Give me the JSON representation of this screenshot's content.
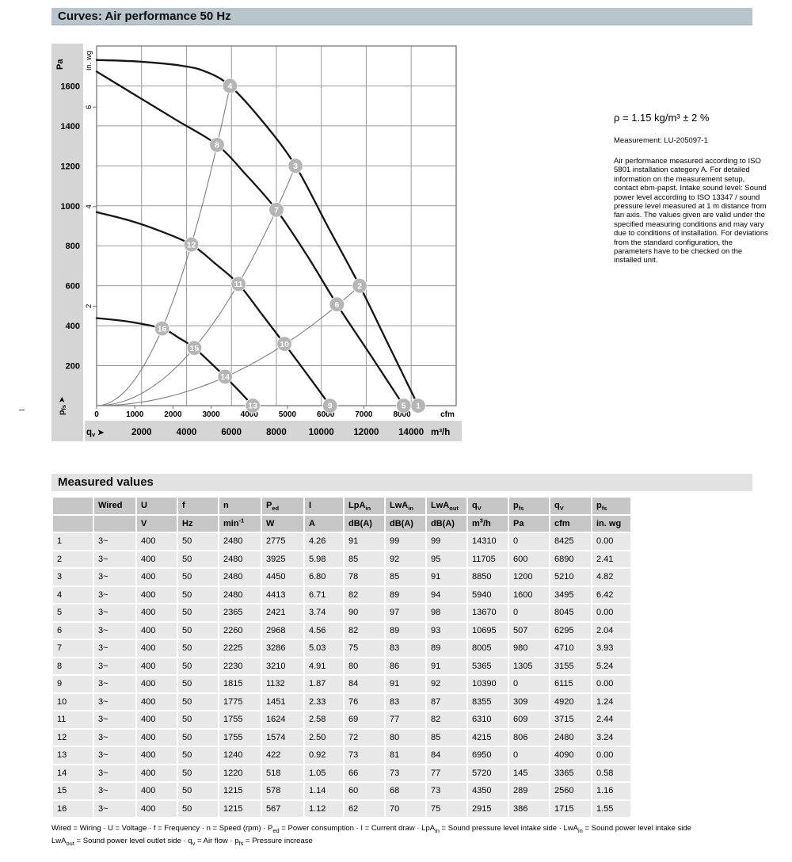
{
  "header": {
    "title": "Curves: Air performance 50 Hz",
    "bg": "#b9c5cd"
  },
  "section2": {
    "title": "Measured values",
    "bg": "#e2e2e2"
  },
  "margin_mark": "–",
  "notes": {
    "density": "ρ = 1.15 kg/m³ ± 2 %",
    "measurement": "Measurement: LU-205097-1",
    "body": "Air performance measured according to ISO 5801 installation category A. For detailed information on the measurement setup, contact ebm-papst. Intake sound level: Sound power level according to ISO 13347 / sound pressure level measured at 1 m distance from fan axis. The values given are valid under the specified measuring conditions and may vary due to conditions of installation. For deviations from the standard configuration, the parameters have to be checked on the installed unit."
  },
  "chart_data": {
    "type": "line",
    "title": "Air performance 50 Hz",
    "x_axis": {
      "label": "cfm",
      "min": 0,
      "max": 9420,
      "ticks": [
        0,
        1000,
        2000,
        3000,
        4000,
        5000,
        6000,
        7000,
        8000
      ]
    },
    "x_axis_secondary": {
      "label": "m³/h",
      "prefix_base": "q",
      "prefix_sub": "v",
      "prefix_arrow": "➤",
      "ticks": [
        2000,
        4000,
        6000,
        8000,
        10000,
        12000,
        14000
      ],
      "cfm_per_m3h": 0.5886,
      "grid_step": 2000
    },
    "y_axis": {
      "label": "Pa",
      "min": 0,
      "max": 1800,
      "ticks": [
        200,
        400,
        600,
        800,
        1000,
        1200,
        1400,
        1600
      ]
    },
    "y_axis_left_bottom": {
      "base": "p",
      "sub": "fs",
      "arrow": "➤"
    },
    "y_axis_secondary": {
      "label": "in. wg",
      "ticks": [
        2,
        4,
        6
      ],
      "pa_per_unit": 249
    },
    "grid": true,
    "fan_curves": [
      {
        "name": "fan-curve-markers-4-3-2-1",
        "points": [
          [
            0,
            1730
          ],
          [
            1100,
            1722
          ],
          [
            2200,
            1702
          ],
          [
            2850,
            1672
          ],
          [
            3495,
            1600
          ],
          [
            4380,
            1415
          ],
          [
            5210,
            1200
          ],
          [
            6060,
            895
          ],
          [
            6890,
            600
          ],
          [
            7670,
            295
          ],
          [
            8425,
            0
          ]
        ]
      },
      {
        "name": "fan-curve-markers-8-7-6-5",
        "points": [
          [
            0,
            1672
          ],
          [
            1050,
            1550
          ],
          [
            2100,
            1428
          ],
          [
            3155,
            1305
          ],
          [
            3940,
            1150
          ],
          [
            4710,
            980
          ],
          [
            5510,
            752
          ],
          [
            6295,
            507
          ],
          [
            7180,
            252
          ],
          [
            8045,
            0
          ]
        ]
      },
      {
        "name": "fan-curve-markers-12-11-10-9",
        "points": [
          [
            0,
            968
          ],
          [
            830,
            928
          ],
          [
            1650,
            875
          ],
          [
            2480,
            806
          ],
          [
            3100,
            712
          ],
          [
            3715,
            609
          ],
          [
            4320,
            460
          ],
          [
            4920,
            309
          ],
          [
            5520,
            156
          ],
          [
            6115,
            0
          ]
        ]
      },
      {
        "name": "fan-curve-markers-16-15-14-13",
        "points": [
          [
            0,
            438
          ],
          [
            860,
            420
          ],
          [
            1715,
            386
          ],
          [
            2140,
            341
          ],
          [
            2560,
            289
          ],
          [
            2965,
            218
          ],
          [
            3365,
            145
          ],
          [
            3730,
            74
          ],
          [
            4090,
            0
          ]
        ]
      }
    ],
    "system_curves": [
      {
        "through_markers": [
          16,
          12,
          8,
          4
        ],
        "end": [
          3495,
          1600
        ]
      },
      {
        "through_markers": [
          15,
          11,
          7,
          3
        ],
        "end": [
          5210,
          1200
        ]
      },
      {
        "through_markers": [
          14,
          10,
          6,
          2
        ],
        "end": [
          6890,
          600
        ]
      }
    ],
    "markers": [
      {
        "id": 1,
        "cfm": 8425,
        "pa": 0
      },
      {
        "id": 2,
        "cfm": 6890,
        "pa": 600
      },
      {
        "id": 3,
        "cfm": 5210,
        "pa": 1200
      },
      {
        "id": 4,
        "cfm": 3495,
        "pa": 1600
      },
      {
        "id": 5,
        "cfm": 8045,
        "pa": 0
      },
      {
        "id": 6,
        "cfm": 6295,
        "pa": 507
      },
      {
        "id": 7,
        "cfm": 4710,
        "pa": 980
      },
      {
        "id": 8,
        "cfm": 3155,
        "pa": 1305
      },
      {
        "id": 9,
        "cfm": 6115,
        "pa": 0
      },
      {
        "id": 10,
        "cfm": 4920,
        "pa": 309
      },
      {
        "id": 11,
        "cfm": 3715,
        "pa": 609
      },
      {
        "id": 12,
        "cfm": 2480,
        "pa": 806
      },
      {
        "id": 13,
        "cfm": 4090,
        "pa": 0
      },
      {
        "id": 14,
        "cfm": 3365,
        "pa": 145
      },
      {
        "id": 15,
        "cfm": 2560,
        "pa": 289
      },
      {
        "id": 16,
        "cfm": 1715,
        "pa": 386
      }
    ],
    "colors": {
      "fan": "#151515",
      "system": "#7e7e7e",
      "grid": "#9b9b9b",
      "border": "#6e6e6e",
      "marker": "#b5b5b5",
      "marker_text": "#ffffff",
      "band": "#d5d5d5"
    }
  },
  "table": {
    "header_row1": [
      [],
      [
        [
          "t",
          "Wired"
        ]
      ],
      [
        [
          "t",
          "U"
        ]
      ],
      [
        [
          "t",
          "f"
        ]
      ],
      [
        [
          "t",
          "n"
        ]
      ],
      [
        [
          "t",
          "P"
        ],
        [
          "sub",
          "ed"
        ]
      ],
      [
        [
          "t",
          "I"
        ]
      ],
      [
        [
          "t",
          "LpA"
        ],
        [
          "sub",
          "in"
        ]
      ],
      [
        [
          "t",
          "LwA"
        ],
        [
          "sub",
          "in"
        ]
      ],
      [
        [
          "t",
          "LwA"
        ],
        [
          "sub",
          "out"
        ]
      ],
      [
        [
          "t",
          "q"
        ],
        [
          "sub",
          "V"
        ]
      ],
      [
        [
          "t",
          "p"
        ],
        [
          "sub",
          "fs"
        ]
      ],
      [
        [
          "t",
          "q"
        ],
        [
          "sub",
          "V"
        ]
      ],
      [
        [
          "t",
          "p"
        ],
        [
          "sub",
          "fs"
        ]
      ]
    ],
    "header_row2": [
      [],
      [],
      [
        [
          "t",
          "V"
        ]
      ],
      [
        [
          "t",
          "Hz"
        ]
      ],
      [
        [
          "t",
          "min"
        ],
        [
          "sup",
          "-1"
        ]
      ],
      [
        [
          "t",
          "W"
        ]
      ],
      [
        [
          "t",
          "A"
        ]
      ],
      [
        [
          "t",
          "dB(A)"
        ]
      ],
      [
        [
          "t",
          "dB(A)"
        ]
      ],
      [
        [
          "t",
          "dB(A)"
        ]
      ],
      [
        [
          "t",
          "m"
        ],
        [
          "sup",
          "3"
        ],
        [
          "t",
          "/h"
        ]
      ],
      [
        [
          "t",
          "Pa"
        ]
      ],
      [
        [
          "t",
          "cfm"
        ]
      ],
      [
        [
          "t",
          "in. wg"
        ]
      ]
    ],
    "rows": [
      [
        "1",
        "3~",
        "400",
        "50",
        "2480",
        "2775",
        "4.26",
        "91",
        "99",
        "99",
        "14310",
        "0",
        "8425",
        "0.00"
      ],
      [
        "2",
        "3~",
        "400",
        "50",
        "2480",
        "3925",
        "5.98",
        "85",
        "92",
        "95",
        "11705",
        "600",
        "6890",
        "2.41"
      ],
      [
        "3",
        "3~",
        "400",
        "50",
        "2480",
        "4450",
        "6.80",
        "78",
        "85",
        "91",
        "8850",
        "1200",
        "5210",
        "4.82"
      ],
      [
        "4",
        "3~",
        "400",
        "50",
        "2480",
        "4413",
        "6.71",
        "82",
        "89",
        "94",
        "5940",
        "1600",
        "3495",
        "6.42"
      ],
      [
        "5",
        "3~",
        "400",
        "50",
        "2365",
        "2421",
        "3.74",
        "90",
        "97",
        "98",
        "13670",
        "0",
        "8045",
        "0.00"
      ],
      [
        "6",
        "3~",
        "400",
        "50",
        "2260",
        "2968",
        "4.56",
        "82",
        "89",
        "93",
        "10695",
        "507",
        "6295",
        "2.04"
      ],
      [
        "7",
        "3~",
        "400",
        "50",
        "2225",
        "3286",
        "5.03",
        "75",
        "83",
        "89",
        "8005",
        "980",
        "4710",
        "3.93"
      ],
      [
        "8",
        "3~",
        "400",
        "50",
        "2230",
        "3210",
        "4.91",
        "80",
        "86",
        "91",
        "5365",
        "1305",
        "3155",
        "5.24"
      ],
      [
        "9",
        "3~",
        "400",
        "50",
        "1815",
        "1132",
        "1.87",
        "84",
        "91",
        "92",
        "10390",
        "0",
        "6115",
        "0.00"
      ],
      [
        "10",
        "3~",
        "400",
        "50",
        "1775",
        "1451",
        "2.33",
        "76",
        "83",
        "87",
        "8355",
        "309",
        "4920",
        "1.24"
      ],
      [
        "11",
        "3~",
        "400",
        "50",
        "1755",
        "1624",
        "2.58",
        "69",
        "77",
        "82",
        "6310",
        "609",
        "3715",
        "2.44"
      ],
      [
        "12",
        "3~",
        "400",
        "50",
        "1755",
        "1574",
        "2.50",
        "72",
        "80",
        "85",
        "4215",
        "806",
        "2480",
        "3.24"
      ],
      [
        "13",
        "3~",
        "400",
        "50",
        "1240",
        "422",
        "0.92",
        "73",
        "81",
        "84",
        "6950",
        "0",
        "4090",
        "0.00"
      ],
      [
        "14",
        "3~",
        "400",
        "50",
        "1220",
        "518",
        "1.05",
        "66",
        "73",
        "77",
        "5720",
        "145",
        "3365",
        "0.58"
      ],
      [
        "15",
        "3~",
        "400",
        "50",
        "1215",
        "578",
        "1.14",
        "60",
        "68",
        "73",
        "4350",
        "289",
        "2560",
        "1.16"
      ],
      [
        "16",
        "3~",
        "400",
        "50",
        "1215",
        "567",
        "1.12",
        "62",
        "70",
        "75",
        "2915",
        "386",
        "1715",
        "1.55"
      ]
    ]
  },
  "legend_lines": [
    [
      [
        "t",
        "Wired = Wiring · U = Voltage · f = Frequency · n = Speed (rpm) · P"
      ],
      [
        "sub",
        "ed"
      ],
      [
        "t",
        " = Power consumption · I = Current draw · LpA"
      ],
      [
        "sub",
        "in"
      ],
      [
        "t",
        " = Sound pressure level intake side · LwA"
      ],
      [
        "sub",
        "in"
      ],
      [
        "t",
        " = Sound power level intake side"
      ]
    ],
    [
      [
        "t",
        "LwA"
      ],
      [
        "sub",
        "out"
      ],
      [
        "t",
        " = Sound power level outlet side · q"
      ],
      [
        "sub",
        "v"
      ],
      [
        "t",
        " = Air flow · p"
      ],
      [
        "sub",
        "fs"
      ],
      [
        "t",
        " = Pressure increase"
      ]
    ]
  ]
}
